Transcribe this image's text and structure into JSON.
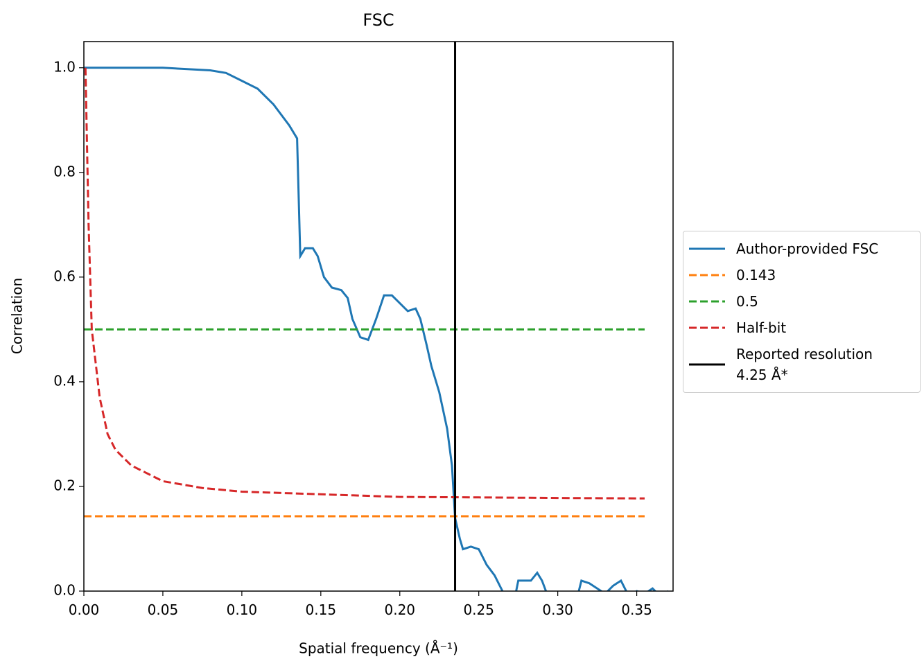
{
  "chart_data": {
    "type": "line",
    "title": "FSC",
    "xlabel": "Spatial frequency (Å⁻¹)",
    "ylabel": "Correlation",
    "xlim": [
      0,
      0.373
    ],
    "ylim": [
      0,
      1.05
    ],
    "xticks": [
      {
        "value": 0,
        "label": "0.00"
      },
      {
        "value": 0.05,
        "label": "0.05"
      },
      {
        "value": 0.1,
        "label": "0.10"
      },
      {
        "value": 0.15,
        "label": "0.15"
      },
      {
        "value": 0.2,
        "label": "0.20"
      },
      {
        "value": 0.25,
        "label": "0.25"
      },
      {
        "value": 0.3,
        "label": "0.30"
      },
      {
        "value": 0.35,
        "label": "0.35"
      }
    ],
    "yticks": [
      {
        "value": 0,
        "label": "0.0"
      },
      {
        "value": 0.2,
        "label": "0.2"
      },
      {
        "value": 0.4,
        "label": "0.4"
      },
      {
        "value": 0.6,
        "label": "0.6"
      },
      {
        "value": 0.8,
        "label": "0.8"
      },
      {
        "value": 1,
        "label": "1.0"
      }
    ],
    "grid": false,
    "legend": "outside right",
    "series": [
      {
        "name": "Author-provided FSC",
        "color": "#1f77b4",
        "style": "solid",
        "x": [
          0,
          0.05,
          0.08,
          0.09,
          0.1,
          0.11,
          0.12,
          0.13,
          0.135,
          0.137,
          0.14,
          0.145,
          0.148,
          0.152,
          0.157,
          0.163,
          0.167,
          0.17,
          0.175,
          0.18,
          0.185,
          0.19,
          0.195,
          0.2,
          0.205,
          0.21,
          0.213,
          0.217,
          0.22,
          0.225,
          0.23,
          0.233,
          0.235,
          0.238,
          0.24,
          0.245,
          0.25,
          0.255,
          0.26,
          0.265,
          0.268,
          0.273,
          0.275,
          0.28,
          0.283,
          0.287,
          0.29,
          0.295,
          0.3,
          0.31,
          0.315,
          0.32,
          0.325,
          0.33,
          0.335,
          0.34,
          0.345,
          0.35,
          0.355,
          0.36,
          0.365,
          0.37
        ],
        "values": [
          1,
          1,
          0.995,
          0.99,
          0.975,
          0.96,
          0.93,
          0.89,
          0.865,
          0.64,
          0.655,
          0.655,
          0.64,
          0.6,
          0.58,
          0.575,
          0.56,
          0.52,
          0.485,
          0.48,
          0.52,
          0.565,
          0.565,
          0.55,
          0.535,
          0.54,
          0.52,
          0.47,
          0.43,
          0.38,
          0.31,
          0.24,
          0.14,
          0.1,
          0.08,
          0.085,
          0.08,
          0.05,
          0.03,
          0,
          -0.03,
          -0.01,
          0.02,
          0.02,
          0.02,
          0.035,
          0.02,
          -0.02,
          -0.05,
          -0.04,
          0.02,
          0.015,
          0.005,
          -0.005,
          0.01,
          0.02,
          -0.01,
          0,
          -0.005,
          0.005,
          -0.01,
          0
        ]
      },
      {
        "name": "0.143",
        "color": "#ff7f0e",
        "style": "dashed",
        "x": [
          0,
          0.355
        ],
        "values": [
          0.143,
          0.143
        ]
      },
      {
        "name": "0.5",
        "color": "#2ca02c",
        "style": "dashed",
        "x": [
          0,
          0.355
        ],
        "values": [
          0.5,
          0.5
        ]
      },
      {
        "name": "Half-bit",
        "color": "#d62728",
        "style": "dashed",
        "x": [
          0.001,
          0.003,
          0.005,
          0.01,
          0.015,
          0.02,
          0.03,
          0.05,
          0.075,
          0.1,
          0.15,
          0.2,
          0.25,
          0.3,
          0.355
        ],
        "values": [
          1,
          0.7,
          0.5,
          0.37,
          0.3,
          0.27,
          0.24,
          0.21,
          0.197,
          0.19,
          0.185,
          0.18,
          0.179,
          0.178,
          0.177
        ]
      },
      {
        "name": "Reported resolution\n 4.25 Å*",
        "color": "#000000",
        "style": "vline",
        "x_value": 0.235
      }
    ]
  }
}
